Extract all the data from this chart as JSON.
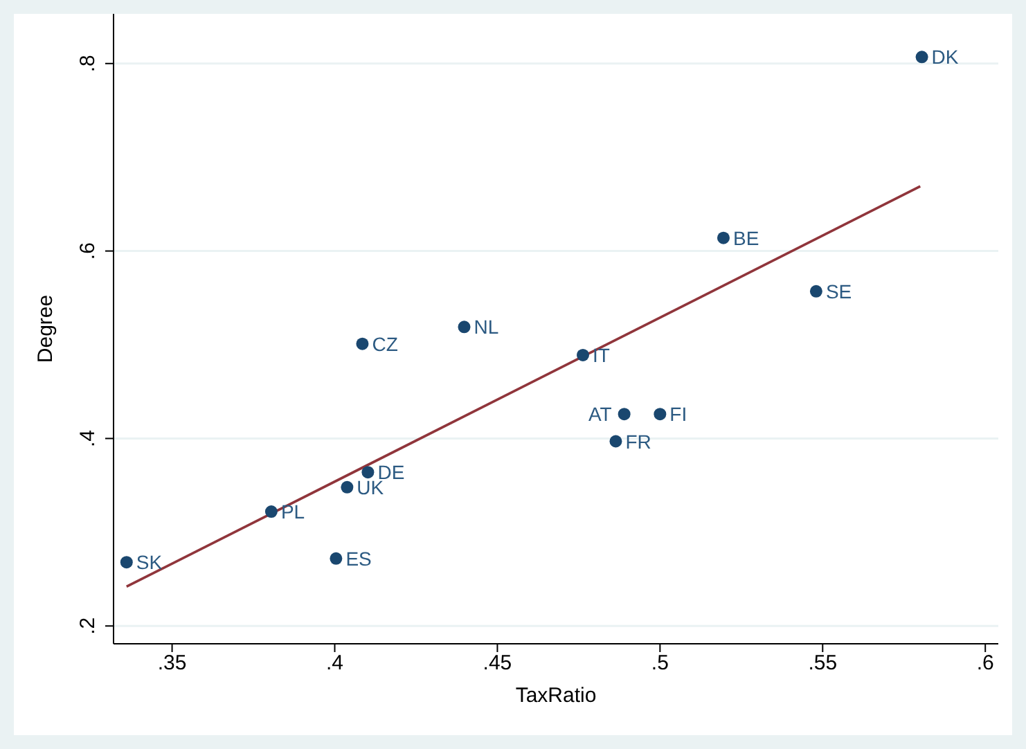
{
  "chart_data": {
    "type": "scatter",
    "xlabel": "TaxRatio",
    "ylabel": "Degree",
    "xlim": [
      0.332,
      0.604
    ],
    "ylim": [
      0.181,
      0.853
    ],
    "xticks": [
      {
        "value": 0.35,
        "label": ".35"
      },
      {
        "value": 0.4,
        "label": ".4"
      },
      {
        "value": 0.45,
        "label": ".45"
      },
      {
        "value": 0.5,
        "label": ".5"
      },
      {
        "value": 0.55,
        "label": ".55"
      },
      {
        "value": 0.6,
        "label": ".6"
      }
    ],
    "yticks": [
      {
        "value": 0.2,
        "label": ".2"
      },
      {
        "value": 0.4,
        "label": ".4"
      },
      {
        "value": 0.6,
        "label": ".6"
      },
      {
        "value": 0.8,
        "label": ".8"
      }
    ],
    "grid": "y",
    "marker": "circle",
    "legend": false,
    "series": [
      {
        "color": "#1a476f",
        "x": [
          0.5805,
          0.5195,
          0.548,
          0.4398,
          0.4085,
          0.4763,
          0.489,
          0.5,
          0.4864,
          0.4102,
          0.4038,
          0.3805,
          0.336,
          0.4004
        ],
        "values": [
          0.807,
          0.614,
          0.557,
          0.519,
          0.501,
          0.489,
          0.426,
          0.426,
          0.397,
          0.364,
          0.348,
          0.322,
          0.268,
          0.272
        ]
      },
      {
        "type": "line",
        "color": "#90353b",
        "line_style": "solid",
        "marker": "none",
        "x": [
          0.336,
          0.58
        ],
        "values": [
          0.242,
          0.669
        ]
      }
    ],
    "annotations": [
      {
        "text": "DK",
        "x": 0.5805,
        "y": 0.807
      },
      {
        "text": "BE",
        "x": 0.5195,
        "y": 0.614
      },
      {
        "text": "SE",
        "x": 0.548,
        "y": 0.557
      },
      {
        "text": "NL",
        "x": 0.4398,
        "y": 0.519
      },
      {
        "text": "CZ",
        "x": 0.4085,
        "y": 0.501
      },
      {
        "text": "IT",
        "x": 0.4763,
        "y": 0.489
      },
      {
        "text": "AT",
        "x": 0.489,
        "y": 0.426
      },
      {
        "text": "FI",
        "x": 0.5,
        "y": 0.426
      },
      {
        "text": "FR",
        "x": 0.4864,
        "y": 0.397
      },
      {
        "text": "DE",
        "x": 0.4102,
        "y": 0.364
      },
      {
        "text": "UK",
        "x": 0.4038,
        "y": 0.348
      },
      {
        "text": "PL",
        "x": 0.3805,
        "y": 0.322
      },
      {
        "text": "SK",
        "x": 0.336,
        "y": 0.268
      },
      {
        "text": "ES",
        "x": 0.4004,
        "y": 0.272
      }
    ]
  }
}
